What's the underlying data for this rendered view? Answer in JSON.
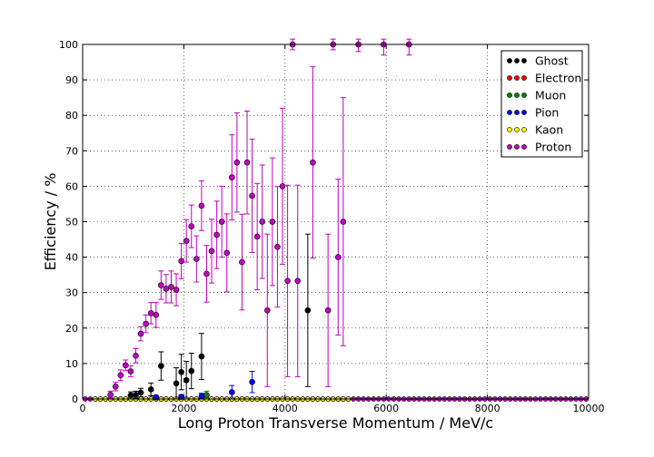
{
  "chart_data": {
    "type": "scatter",
    "xlabel": "Long Proton Transverse Momentum / MeV/c",
    "ylabel": "Efficiency / %",
    "xlim": [
      0,
      10000
    ],
    "ylim": [
      0,
      100
    ],
    "x_ticks": [
      0,
      2000,
      4000,
      6000,
      8000,
      10000
    ],
    "y_ticks": [
      0,
      10,
      20,
      30,
      40,
      50,
      60,
      70,
      80,
      90,
      100
    ],
    "grid": true,
    "legend_position": "top-right",
    "series": [
      {
        "name": "Ghost",
        "color": "#000000",
        "points": [
          [
            950,
            1.0,
            1.0
          ],
          [
            1050,
            1.2,
            1.0
          ],
          [
            1150,
            1.8,
            1.2
          ],
          [
            1350,
            2.7,
            1.8
          ],
          [
            1550,
            9.3,
            4.0
          ],
          [
            1850,
            4.4,
            4.4
          ],
          [
            1950,
            7.6,
            5.0
          ],
          [
            2050,
            5.3,
            5.3
          ],
          [
            2150,
            7.9,
            5.0
          ],
          [
            2350,
            12.0,
            6.5
          ],
          [
            4450,
            25.0,
            21.5
          ]
        ]
      },
      {
        "name": "Electron",
        "color": "#ff0000",
        "points": []
      },
      {
        "name": "Muon",
        "color": "#008000",
        "points": [
          [
            2450,
            1.1,
            1.1
          ]
        ]
      },
      {
        "name": "Pion",
        "color": "#0000ff",
        "points": [
          [
            1450,
            0.5,
            0.5
          ],
          [
            1950,
            0.6,
            0.6
          ],
          [
            2350,
            0.8,
            0.8
          ],
          [
            2950,
            1.9,
            1.9
          ],
          [
            3350,
            4.8,
            3.0
          ]
        ]
      },
      {
        "name": "Kaon",
        "color": "#ffff00",
        "points": []
      },
      {
        "name": "Proton",
        "color": "#bf00bf",
        "points": [
          [
            550,
            1.2,
            1.0
          ],
          [
            650,
            3.5,
            1.2
          ],
          [
            750,
            6.7,
            1.5
          ],
          [
            850,
            9.5,
            1.5
          ],
          [
            950,
            7.8,
            1.5
          ],
          [
            1050,
            12.2,
            2.0
          ],
          [
            1150,
            18.4,
            2.0
          ],
          [
            1250,
            21.2,
            2.5
          ],
          [
            1350,
            24.2,
            3.0
          ],
          [
            1450,
            23.7,
            3.5
          ],
          [
            1550,
            32.1,
            4.0
          ],
          [
            1650,
            31.1,
            4.0
          ],
          [
            1750,
            31.6,
            4.5
          ],
          [
            1850,
            30.8,
            4.5
          ],
          [
            1950,
            38.9,
            5.0
          ],
          [
            2050,
            44.6,
            6.0
          ],
          [
            2150,
            48.7,
            6.0
          ],
          [
            2250,
            39.5,
            6.5
          ],
          [
            2350,
            54.5,
            7.0
          ],
          [
            2450,
            35.3,
            8.0
          ],
          [
            2550,
            41.7,
            9.0
          ],
          [
            2650,
            46.3,
            9.5
          ],
          [
            2750,
            50.0,
            10.0
          ],
          [
            2850,
            41.2,
            11.0
          ],
          [
            2950,
            62.5,
            12.0
          ],
          [
            3050,
            66.7,
            14.0
          ],
          [
            3150,
            38.6,
            13.5
          ],
          [
            3250,
            66.7,
            14.5
          ],
          [
            3350,
            57.3,
            16.0
          ],
          [
            3450,
            45.8,
            15.0
          ],
          [
            3550,
            50.0,
            16.0
          ],
          [
            3650,
            25.0,
            21.5
          ],
          [
            3750,
            50.0,
            18.0
          ],
          [
            3850,
            42.9,
            17.0
          ],
          [
            3950,
            60.0,
            22.0
          ],
          [
            4050,
            33.3,
            27.0
          ],
          [
            4150,
            100.0,
            1.5
          ],
          [
            4250,
            33.3,
            27.0
          ],
          [
            4550,
            66.7,
            27.0
          ],
          [
            4850,
            25.0,
            21.5
          ],
          [
            4950,
            100.0,
            1.5
          ],
          [
            5050,
            40.0,
            22.0
          ],
          [
            5150,
            50.0,
            35.0
          ],
          [
            5450,
            100.0,
            2.0
          ],
          [
            5950,
            100.0,
            3.0
          ],
          [
            6450,
            100.0,
            3.0
          ]
        ]
      }
    ]
  }
}
